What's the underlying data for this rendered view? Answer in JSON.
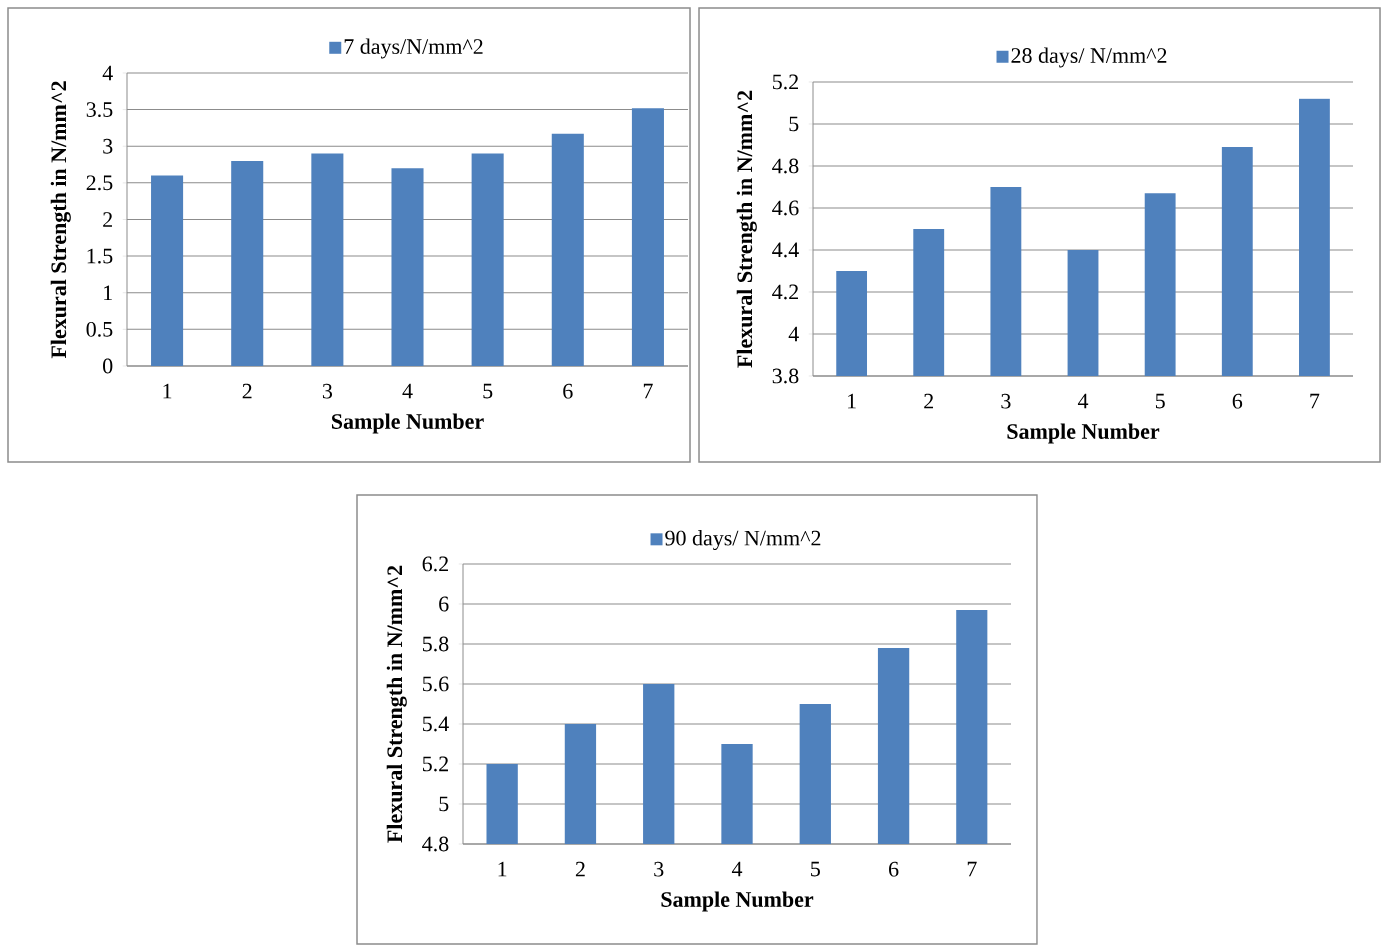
{
  "chart_data": [
    {
      "type": "bar",
      "categories": [
        "1",
        "2",
        "3",
        "4",
        "5",
        "6",
        "7"
      ],
      "xlabel": "Sample Number",
      "ylabel": "Flexural Strength in N/mm^2",
      "ylim": [
        0,
        4
      ],
      "yticks": [
        0,
        0.5,
        1,
        1.5,
        2,
        2.5,
        3,
        3.5,
        4
      ],
      "grid": "y",
      "legend": "top",
      "series": [
        {
          "name": "7 days/N/mm^2",
          "color": "#4f81bd",
          "values": [
            2.6,
            2.8,
            2.9,
            2.7,
            2.9,
            3.17,
            3.52
          ]
        }
      ]
    },
    {
      "type": "bar",
      "categories": [
        "1",
        "2",
        "3",
        "4",
        "5",
        "6",
        "7"
      ],
      "xlabel": "Sample Number",
      "ylabel": "Flexural Strength in N/mm^2",
      "ylim": [
        3.8,
        5.2
      ],
      "yticks": [
        3.8,
        4,
        4.2,
        4.4,
        4.6,
        4.8,
        5,
        5.2
      ],
      "grid": "y",
      "legend": "top",
      "series": [
        {
          "name": "28 days/ N/mm^2",
          "color": "#4f81bd",
          "values": [
            4.3,
            4.5,
            4.7,
            4.4,
            4.67,
            4.89,
            5.12
          ]
        }
      ]
    },
    {
      "type": "bar",
      "categories": [
        "1",
        "2",
        "3",
        "4",
        "5",
        "6",
        "7"
      ],
      "xlabel": "Sample Number",
      "ylabel": "Flexural Strength in N/mm^2",
      "ylim": [
        4.8,
        6.2
      ],
      "yticks": [
        4.8,
        5,
        5.2,
        5.4,
        5.6,
        5.8,
        6,
        6.2
      ],
      "grid": "y",
      "legend": "top",
      "series": [
        {
          "name": "90 days/ N/mm^2",
          "color": "#4f81bd",
          "values": [
            5.2,
            5.4,
            5.6,
            5.3,
            5.5,
            5.78,
            5.97
          ]
        }
      ]
    }
  ]
}
